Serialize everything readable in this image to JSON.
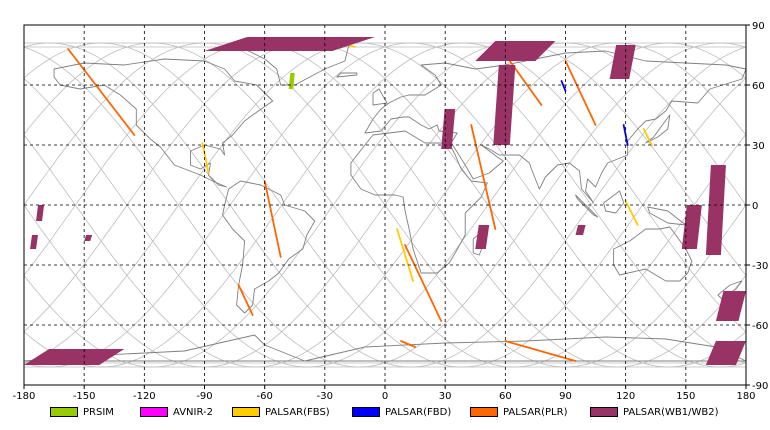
{
  "map": {
    "lon_ticks": [
      "-180",
      "-150",
      "-120",
      "-90",
      "-60",
      "-30",
      "0",
      "30",
      "60",
      "90",
      "120",
      "150",
      "180"
    ],
    "lat_ticks": [
      "90",
      "60",
      "30",
      "0",
      "-30",
      "-60",
      "-90"
    ],
    "lon_range": [
      -180,
      180
    ],
    "lat_range": [
      -90,
      90
    ],
    "grid": true,
    "colors": {
      "frame": "#000000",
      "grid": "#000000",
      "orbit": "#bdbdbd",
      "coast": "#808080"
    }
  },
  "legend": {
    "items": [
      {
        "label": "PRSIM",
        "color": "#99cc00"
      },
      {
        "label": "AVNIR-2",
        "color": "#ff00ff"
      },
      {
        "label": "PALSAR(FBS)",
        "color": "#ffcc00"
      },
      {
        "label": "PALSAR(FBD)",
        "color": "#0000ff"
      },
      {
        "label": "PALSAR(PLR)",
        "color": "#ff6600"
      },
      {
        "label": "PALSAR(WB1/WB2)",
        "color": "#993366"
      }
    ]
  },
  "acquisitions": [
    {
      "type": "PRSIM",
      "lon": [
        -48,
        -45
      ],
      "lat": [
        66,
        58
      ]
    },
    {
      "type": "PALSAR(FBS)",
      "lon": [
        -25,
        -15
      ],
      "lat": [
        82,
        79
      ]
    },
    {
      "type": "PALSAR(FBS)",
      "lon": [
        -91,
        -88
      ],
      "lat": [
        31,
        16
      ]
    },
    {
      "type": "PALSAR(FBS)",
      "lon": [
        6,
        14
      ],
      "lat": [
        -12,
        -38
      ]
    },
    {
      "type": "PALSAR(FBS)",
      "lon": [
        129,
        133
      ],
      "lat": [
        38,
        30
      ]
    },
    {
      "type": "PALSAR(FBS)",
      "lon": [
        120,
        126
      ],
      "lat": [
        2,
        -10
      ]
    },
    {
      "type": "PALSAR(FBD)",
      "lon": [
        88,
        90
      ],
      "lat": [
        62,
        57
      ]
    },
    {
      "type": "PALSAR(FBD)",
      "lon": [
        119,
        121
      ],
      "lat": [
        40,
        30
      ]
    },
    {
      "type": "PALSAR(PLR)",
      "lon": [
        -60,
        -52
      ],
      "lat": [
        12,
        -26
      ]
    },
    {
      "type": "PALSAR(PLR)",
      "lon": [
        -73,
        -66
      ],
      "lat": [
        -40,
        -55
      ]
    },
    {
      "type": "PALSAR(PLR)",
      "lon": [
        10,
        28
      ],
      "lat": [
        -20,
        -58
      ]
    },
    {
      "type": "PALSAR(PLR)",
      "lon": [
        43,
        55
      ],
      "lat": [
        40,
        -12
      ]
    },
    {
      "type": "PALSAR(PLR)",
      "lon": [
        58,
        78
      ],
      "lat": [
        78,
        50
      ]
    },
    {
      "type": "PALSAR(PLR)",
      "lon": [
        90,
        105
      ],
      "lat": [
        72,
        40
      ]
    },
    {
      "type": "PALSAR(PLR)",
      "lon": [
        -158,
        -125
      ],
      "lat": [
        78,
        35
      ]
    },
    {
      "type": "PALSAR(PLR)",
      "lon": [
        60,
        95
      ],
      "lat": [
        -68,
        -78
      ]
    },
    {
      "type": "PALSAR(PLR)",
      "lon": [
        8,
        15
      ],
      "lat": [
        -68,
        -71
      ]
    },
    {
      "type": "PALSAR(WB1/WB2)",
      "lon": [
        -90,
        -5
      ],
      "lat": [
        84,
        77
      ]
    },
    {
      "type": "PALSAR(WB1/WB2)",
      "lon": [
        45,
        85
      ],
      "lat": [
        82,
        72
      ]
    },
    {
      "type": "PALSAR(WB1/WB2)",
      "lon": [
        28,
        35
      ],
      "lat": [
        48,
        28
      ]
    },
    {
      "type": "PALSAR(WB1/WB2)",
      "lon": [
        54,
        65
      ],
      "lat": [
        70,
        30
      ]
    },
    {
      "type": "PALSAR(WB1/WB2)",
      "lon": [
        112,
        125
      ],
      "lat": [
        80,
        63
      ]
    },
    {
      "type": "PALSAR(WB1/WB2)",
      "lon": [
        148,
        158
      ],
      "lat": [
        0,
        -22
      ]
    },
    {
      "type": "PALSAR(WB1/WB2)",
      "lon": [
        160,
        170
      ],
      "lat": [
        20,
        -25
      ]
    },
    {
      "type": "PALSAR(WB1/WB2)",
      "lon": [
        165,
        180
      ],
      "lat": [
        -43,
        -58
      ]
    },
    {
      "type": "PALSAR(WB1/WB2)",
      "lon": [
        -180,
        -130
      ],
      "lat": [
        -72,
        -80
      ]
    },
    {
      "type": "PALSAR(WB1/WB2)",
      "lon": [
        160,
        180
      ],
      "lat": [
        -68,
        -80
      ]
    },
    {
      "type": "PALSAR(WB1/WB2)",
      "lon": [
        -174,
        -170
      ],
      "lat": [
        0,
        -8
      ]
    },
    {
      "type": "PALSAR(WB1/WB2)",
      "lon": [
        -177,
        -173
      ],
      "lat": [
        -15,
        -22
      ]
    },
    {
      "type": "PALSAR(WB1/WB2)",
      "lon": [
        -150,
        -146
      ],
      "lat": [
        -15,
        -18
      ]
    },
    {
      "type": "PALSAR(WB1/WB2)",
      "lon": [
        45,
        52
      ],
      "lat": [
        -10,
        -22
      ]
    },
    {
      "type": "PALSAR(WB1/WB2)",
      "lon": [
        95,
        100
      ],
      "lat": [
        -10,
        -15
      ]
    }
  ]
}
